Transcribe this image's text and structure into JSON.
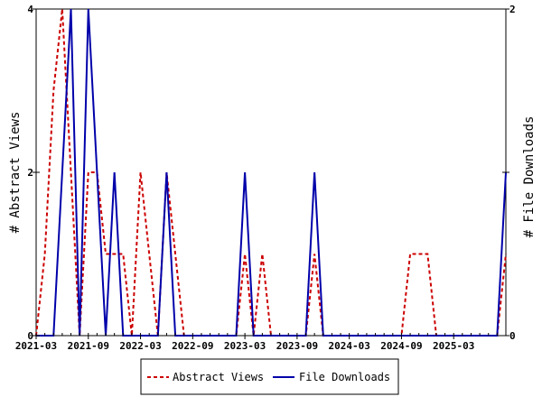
{
  "chart_data": {
    "type": "line",
    "x_ticks": [
      "2021-03",
      "2021-09",
      "2022-03",
      "2022-09",
      "2023-03",
      "2023-09",
      "2024-03",
      "2024-09",
      "2025-03"
    ],
    "ylabel_left": "# Abstract Views",
    "ylabel_right": "# File Downloads",
    "ylim_left": [
      0,
      4
    ],
    "ylim_right": [
      0,
      2
    ],
    "yticks_left": [
      "0",
      "2",
      "4"
    ],
    "yticks_right": [
      "0",
      "1",
      "2"
    ],
    "x_start": "2021-03",
    "months": [
      "2021-03",
      "2021-04",
      "2021-05",
      "2021-06",
      "2021-07",
      "2021-08",
      "2021-09",
      "2021-10",
      "2021-11",
      "2021-12",
      "2022-01",
      "2022-02",
      "2022-03",
      "2022-04",
      "2022-05",
      "2022-06",
      "2022-07",
      "2022-08",
      "2022-09",
      "2022-10",
      "2022-11",
      "2022-12",
      "2023-01",
      "2023-02",
      "2023-03",
      "2023-04",
      "2023-05",
      "2023-06",
      "2023-07",
      "2023-08",
      "2023-09",
      "2023-10",
      "2023-11",
      "2023-12",
      "2024-01",
      "2024-02",
      "2024-03",
      "2024-04",
      "2024-05",
      "2024-06",
      "2024-07",
      "2024-08",
      "2024-09",
      "2024-10",
      "2024-11",
      "2024-12",
      "2025-01",
      "2025-02",
      "2025-03",
      "2025-04",
      "2025-05",
      "2025-06",
      "2025-07",
      "2025-08",
      "2025-09"
    ],
    "series": [
      {
        "name": "Abstract Views",
        "axis": "left",
        "color": "#cc0000",
        "style": "dashed",
        "values": [
          0,
          1,
          3,
          4,
          2,
          0,
          2,
          2,
          1,
          1,
          1,
          0,
          2,
          1,
          0,
          2,
          1,
          0,
          0,
          0,
          0,
          0,
          0,
          0,
          1,
          0,
          1,
          0,
          0,
          0,
          0,
          0,
          1,
          0,
          0,
          0,
          0,
          0,
          0,
          0,
          0,
          0,
          0,
          1,
          1,
          1,
          0,
          0,
          0,
          0,
          0,
          0,
          0,
          0,
          1
        ]
      },
      {
        "name": "File Downloads",
        "axis": "right",
        "color": "#0000aa",
        "style": "solid",
        "values": [
          0,
          0,
          0,
          1,
          2,
          0,
          2,
          1,
          0,
          1,
          0,
          0,
          0,
          0,
          0,
          1,
          0,
          0,
          0,
          0,
          0,
          0,
          0,
          0,
          1,
          0,
          0,
          0,
          0,
          0,
          0,
          0,
          1,
          0,
          0,
          0,
          0,
          0,
          0,
          0,
          0,
          0,
          0,
          0,
          0,
          0,
          0,
          0,
          0,
          0,
          0,
          0,
          0,
          0,
          1
        ]
      }
    ],
    "grid": false,
    "legend_position": "bottom"
  }
}
